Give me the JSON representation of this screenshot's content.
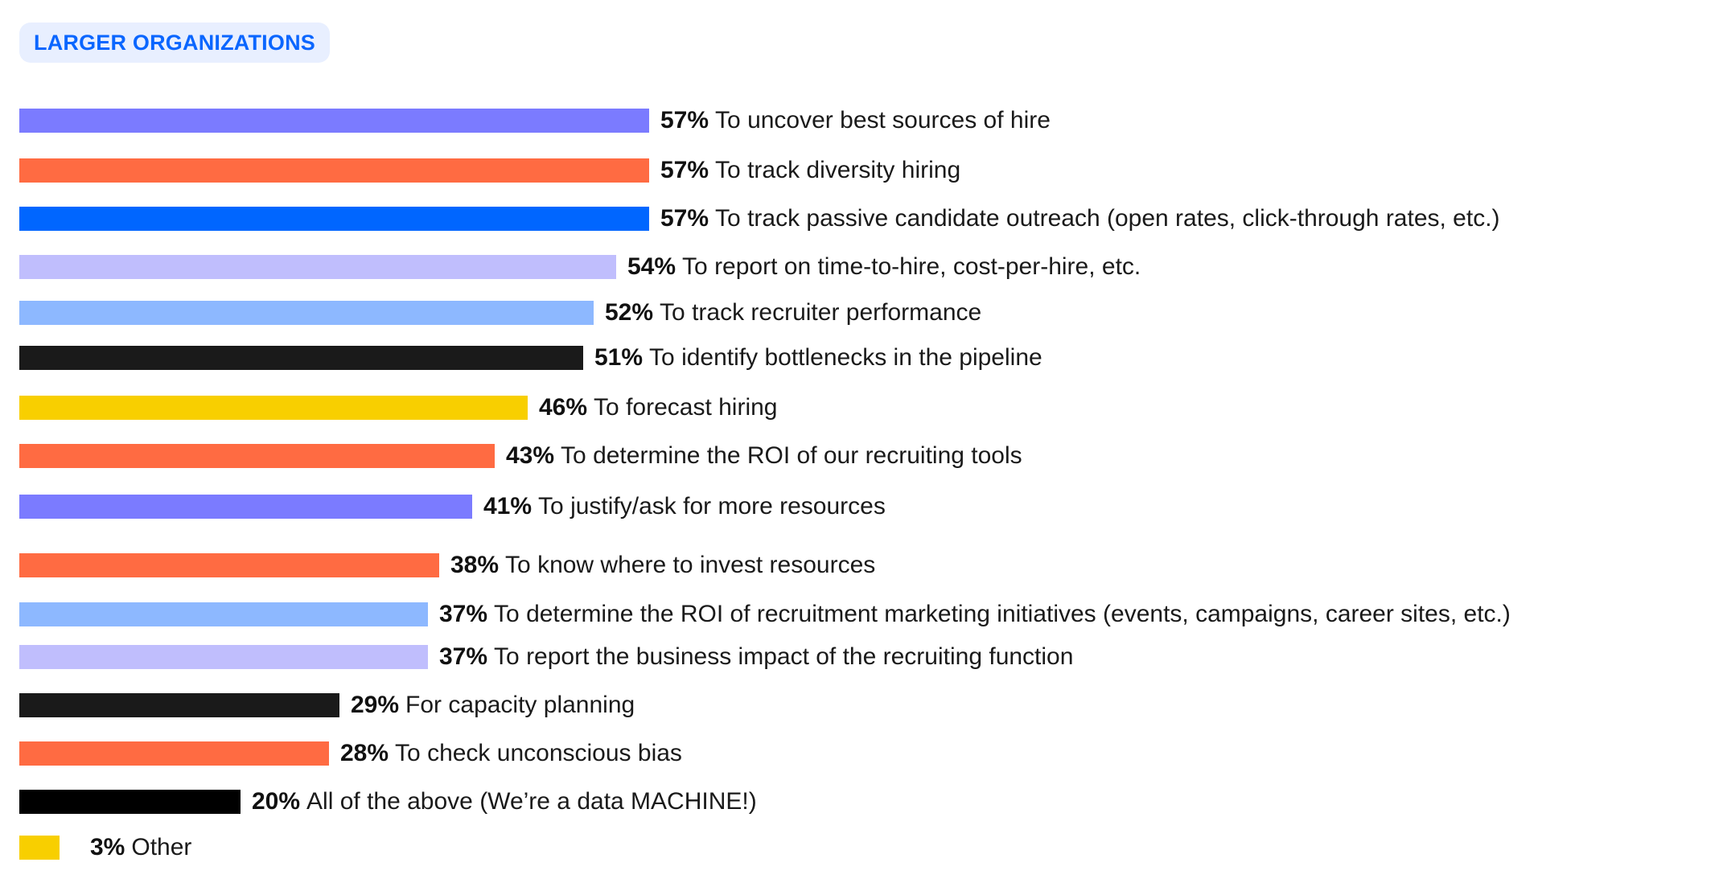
{
  "header": {
    "badge": "LARGER ORGANIZATIONS"
  },
  "chart_data": {
    "type": "bar",
    "orientation": "horizontal",
    "title": "LARGER ORGANIZATIONS",
    "unit": "%",
    "categories": [
      "To uncover best sources of hire",
      "To track diversity hiring",
      "To track passive candidate outreach (open rates, click-through rates, etc.)",
      "To report on time-to-hire, cost-per-hire, etc.",
      "To track recruiter performance",
      "To identify bottlenecks in the pipeline",
      "To forecast hiring",
      "To determine the ROI of our recruiting tools",
      "To justify/ask for more resources",
      "To know where to invest resources",
      "To determine the ROI of recruitment marketing initiatives (events, campaigns, career sites, etc.)",
      "To report the business impact of the recruiting function",
      "For capacity planning",
      "To check unconscious bias",
      "All of the above (We’re a data MACHINE!)",
      "Other"
    ],
    "values": [
      57,
      57,
      57,
      54,
      52,
      51,
      46,
      43,
      41,
      38,
      37,
      37,
      29,
      28,
      20,
      3
    ],
    "value_labels": [
      "57%",
      "57%",
      "57%",
      "54%",
      "52%",
      "51%",
      "46%",
      "43%",
      "41%",
      "38%",
      "37%",
      "37%",
      "29%",
      "28%",
      "20%",
      "3%"
    ],
    "colors": [
      "#7b7bff",
      "#ff6b42",
      "#0066ff",
      "#c0befd",
      "#8db8ff",
      "#1a1a1a",
      "#f8cf00",
      "#ff6b42",
      "#7b7bff",
      "#ff6b42",
      "#8db8ff",
      "#c0befd",
      "#1a1a1a",
      "#ff6b42",
      "#000000",
      "#f8cf00"
    ],
    "xlim": [
      0,
      57
    ],
    "grid": false
  }
}
